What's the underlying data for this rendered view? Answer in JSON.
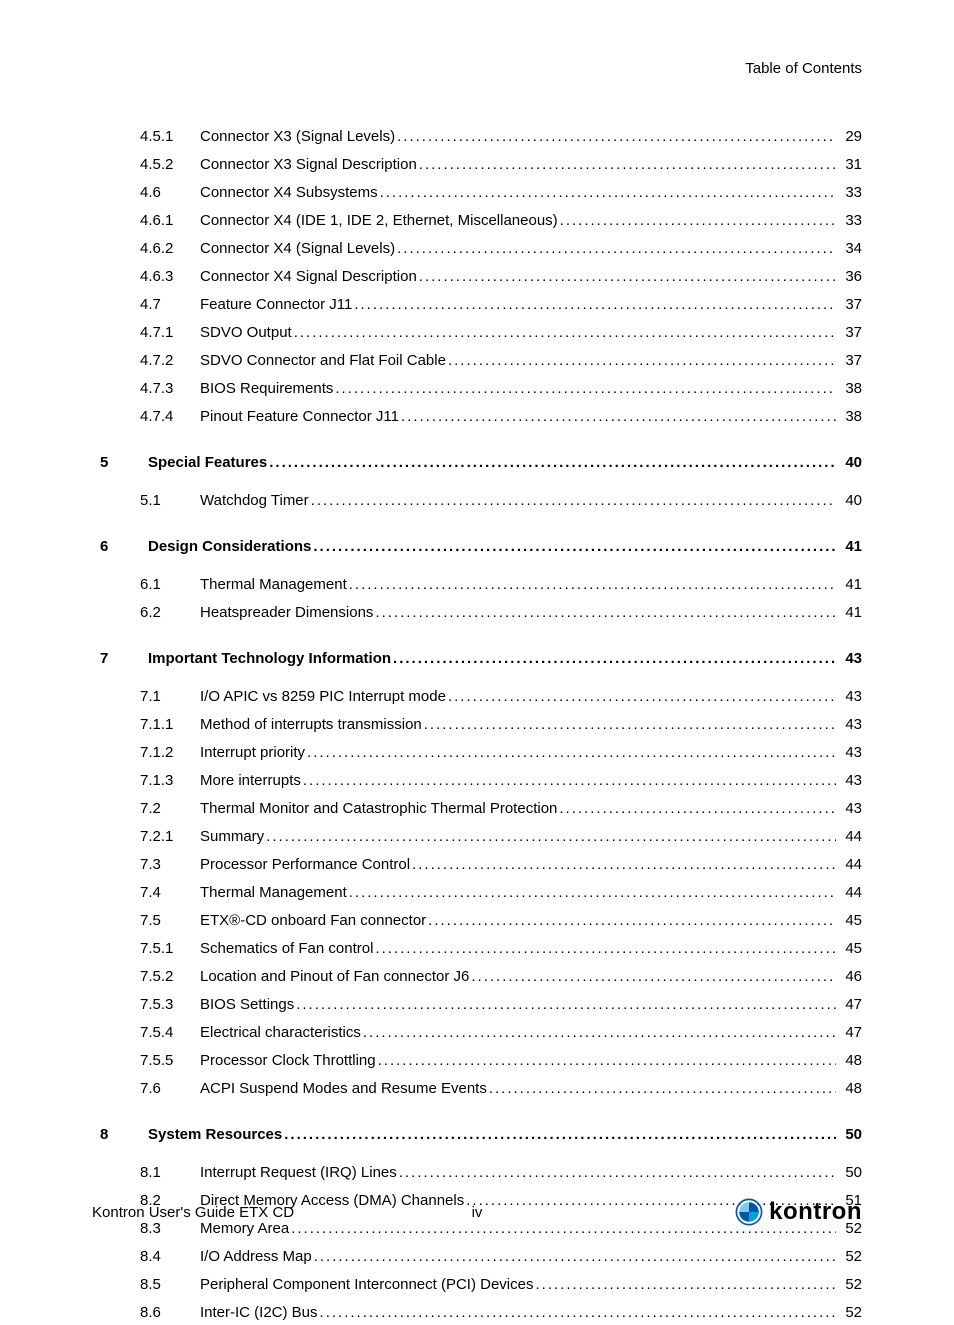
{
  "header": {
    "title": "Table of Contents"
  },
  "entries": [
    {
      "type": "sub",
      "num": "4.5.1",
      "title": "Connector X3 (Signal Levels)",
      "page": "29"
    },
    {
      "type": "sub",
      "num": "4.5.2",
      "title": "Connector X3 Signal Description",
      "page": "31"
    },
    {
      "type": "sub",
      "num": "4.6",
      "title": "Connector X4 Subsystems",
      "page": "33"
    },
    {
      "type": "sub",
      "num": "4.6.1",
      "title": "Connector X4  (IDE 1, IDE 2, Ethernet, Miscellaneous)",
      "page": "33"
    },
    {
      "type": "sub",
      "num": "4.6.2",
      "title": "Connector X4 (Signal Levels)",
      "page": "34"
    },
    {
      "type": "sub",
      "num": "4.6.3",
      "title": "Connector X4 Signal Description",
      "page": "36"
    },
    {
      "type": "sub",
      "num": "4.7",
      "title": "Feature Connector J11",
      "page": "37"
    },
    {
      "type": "sub",
      "num": "4.7.1",
      "title": "SDVO Output",
      "page": "37"
    },
    {
      "type": "sub",
      "num": "4.7.2",
      "title": "SDVO Connector and Flat Foil Cable",
      "page": "37"
    },
    {
      "type": "sub",
      "num": "4.7.3",
      "title": "BIOS Requirements",
      "page": "38"
    },
    {
      "type": "sub",
      "num": "4.7.4",
      "title": "Pinout Feature Connector J11",
      "page": "38"
    },
    {
      "type": "chapter",
      "num": "5",
      "title": "Special Features",
      "page": "40"
    },
    {
      "type": "sub",
      "num": "5.1",
      "title": "Watchdog Timer",
      "page": "40"
    },
    {
      "type": "chapter",
      "num": "6",
      "title": "Design Considerations",
      "page": "41"
    },
    {
      "type": "sub",
      "num": "6.1",
      "title": "Thermal Management",
      "page": "41"
    },
    {
      "type": "sub",
      "num": "6.2",
      "title": "Heatspreader Dimensions",
      "page": "41"
    },
    {
      "type": "chapter",
      "num": "7",
      "title": "Important Technology Information",
      "page": "43"
    },
    {
      "type": "sub",
      "num": "7.1",
      "title": "I/O APIC vs 8259 PIC Interrupt mode",
      "page": "43"
    },
    {
      "type": "sub",
      "num": "7.1.1",
      "title": "Method of interrupts transmission",
      "page": "43"
    },
    {
      "type": "sub",
      "num": "7.1.2",
      "title": "Interrupt priority",
      "page": "43"
    },
    {
      "type": "sub",
      "num": "7.1.3",
      "title": "More interrupts",
      "page": "43"
    },
    {
      "type": "sub",
      "num": "7.2",
      "title": "Thermal Monitor and Catastrophic Thermal Protection",
      "page": "43"
    },
    {
      "type": "sub",
      "num": "7.2.1",
      "title": "Summary",
      "page": "44"
    },
    {
      "type": "sub",
      "num": "7.3",
      "title": "Processor Performance Control",
      "page": "44"
    },
    {
      "type": "sub",
      "num": "7.4",
      "title": "Thermal Management",
      "page": "44"
    },
    {
      "type": "sub",
      "num": "7.5",
      "title": "ETX®-CD onboard Fan connector",
      "page": "45"
    },
    {
      "type": "sub",
      "num": "7.5.1",
      "title": "Schematics of Fan control",
      "page": "45"
    },
    {
      "type": "sub",
      "num": "7.5.2",
      "title": "Location and Pinout of Fan connector J6",
      "page": "46"
    },
    {
      "type": "sub",
      "num": "7.5.3",
      "title": "BIOS Settings",
      "page": "47"
    },
    {
      "type": "sub",
      "num": "7.5.4",
      "title": "Electrical characteristics",
      "page": "47"
    },
    {
      "type": "sub",
      "num": "7.5.5",
      "title": "Processor Clock Throttling",
      "page": "48"
    },
    {
      "type": "sub",
      "num": "7.6",
      "title": "ACPI Suspend Modes and Resume Events",
      "page": "48"
    },
    {
      "type": "chapter",
      "num": "8",
      "title": "System Resources",
      "page": "50"
    },
    {
      "type": "sub",
      "num": "8.1",
      "title": "Interrupt Request (IRQ) Lines",
      "page": "50"
    },
    {
      "type": "sub",
      "num": "8.2",
      "title": "Direct Memory Access (DMA) Channels",
      "page": "51"
    },
    {
      "type": "sub",
      "num": "8.3",
      "title": "Memory Area",
      "page": "52"
    },
    {
      "type": "sub",
      "num": "8.4",
      "title": "I/O Address Map",
      "page": "52"
    },
    {
      "type": "sub",
      "num": "8.5",
      "title": "Peripheral Component Interconnect (PCI) Devices",
      "page": "52"
    },
    {
      "type": "sub",
      "num": "8.6",
      "title": "Inter-IC (I2C) Bus",
      "page": "52"
    }
  ],
  "footer": {
    "left": "Kontron User's Guide ETX CD",
    "center": "iv",
    "logo_text": "kontron",
    "logo_colors": {
      "primary": "#0057a6",
      "accent": "#00a3e0"
    }
  }
}
